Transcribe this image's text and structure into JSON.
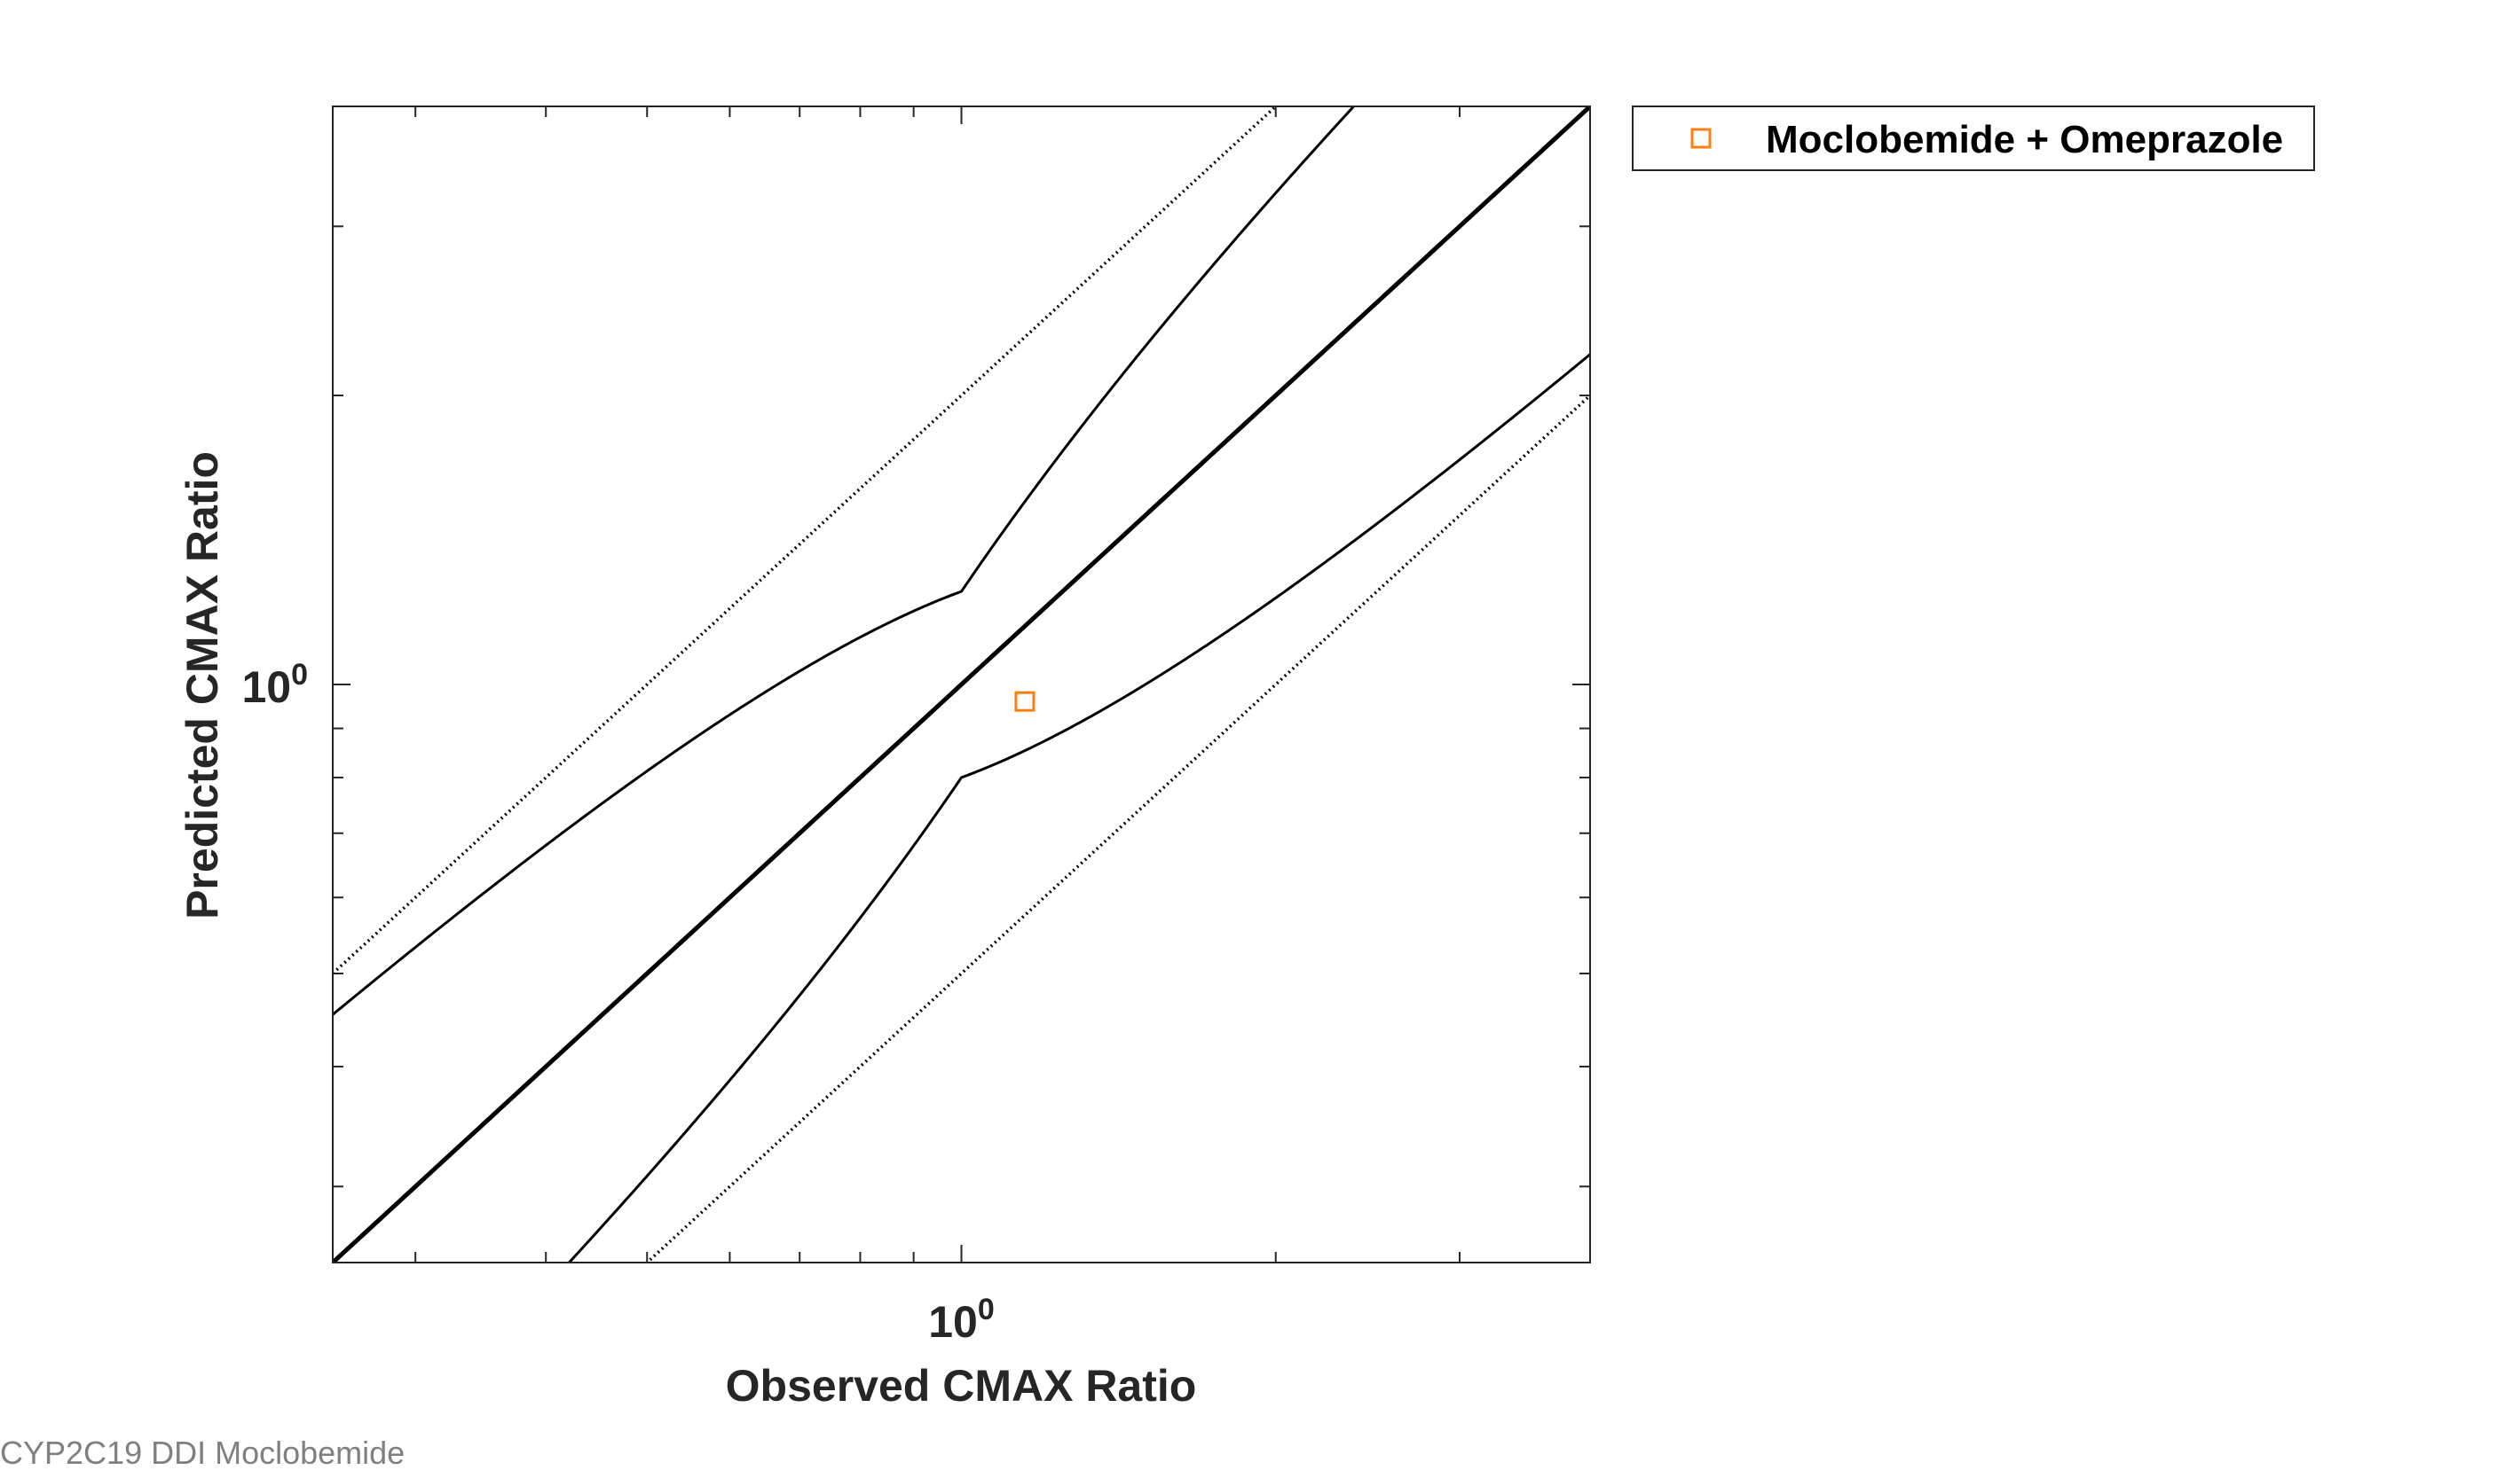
{
  "chart_data": {
    "type": "scatter",
    "xlabel": "Observed CMAX Ratio",
    "ylabel": "Predicted CMAX Ratio",
    "x_scale": "log",
    "y_scale": "log",
    "xlim": [
      0.25,
      4
    ],
    "ylim": [
      0.25,
      4
    ],
    "x_tick_labels": [
      {
        "value": 1,
        "base": "10",
        "exp": "0"
      }
    ],
    "y_tick_labels": [
      {
        "value": 1,
        "base": "10",
        "exp": "0"
      }
    ],
    "grid": false,
    "legend_position": "outside-top-right",
    "series": [
      {
        "name": "Moclobemide + Omeprazole",
        "marker": "open-square",
        "color": "#ff7f0e",
        "points": [
          {
            "x": 1.15,
            "y": 0.96
          }
        ]
      }
    ],
    "reference_lines": [
      {
        "kind": "line-of-unity",
        "style": "solid-thick"
      },
      {
        "kind": "2-fold",
        "style": "dotted"
      },
      {
        "kind": "guest-limit",
        "style": "solid",
        "delta": 1.25
      }
    ]
  },
  "footer": {
    "text": "CYP2C19 DDI Moclobemide"
  }
}
